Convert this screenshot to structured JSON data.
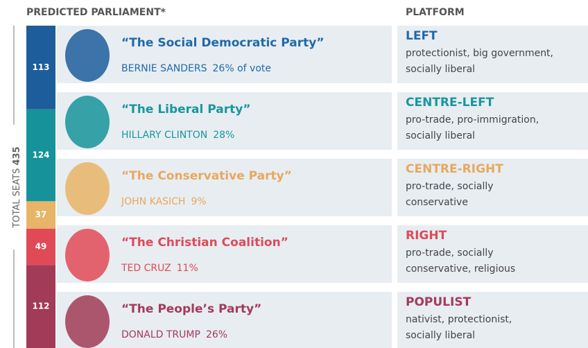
{
  "header": {
    "title": "PREDICTED PARLIAMENT*",
    "platform": "PLATFORM"
  },
  "total": {
    "label": "TOTAL SEATS",
    "value": 435
  },
  "parties": [
    {
      "name": "“The Social Democratic Party”",
      "leader": "BERNIE SANDERS",
      "vote": "26% of vote",
      "seats": 113,
      "color": "#1d5d9b",
      "text_color": "#1f6aaa",
      "platform": "LEFT",
      "description": [
        "protectionist, big government,",
        "socially liberal"
      ]
    },
    {
      "name": "“The Liberal Party”",
      "leader": "HILLARY CLINTON",
      "vote": "28%",
      "seats": 124,
      "color": "#16939a",
      "text_color": "#17979c",
      "platform": "CENTRE-LEFT",
      "description": [
        "pro-trade, pro-immigration,",
        "socially liberal"
      ]
    },
    {
      "name": "“The Conservative Party”",
      "leader": "JOHN KASICH",
      "vote": "9%",
      "seats": 37,
      "color": "#e8b467",
      "text_color": "#e7a85e",
      "platform": "CENTRE-RIGHT",
      "description": [
        "pro-trade, socially",
        "conservative"
      ]
    },
    {
      "name": "“The Christian Coalition”",
      "leader": "TED CRUZ",
      "vote": "11%",
      "seats": 49,
      "color": "#e04a57",
      "text_color": "#df4a58",
      "platform": "RIGHT",
      "description": [
        "pro-trade, socially",
        "conservative, religious"
      ]
    },
    {
      "name": "“The People’s Party”",
      "leader": "DONALD TRUMP",
      "vote": "26%",
      "seats": 112,
      "color": "#a13b57",
      "text_color": "#a33a5a",
      "platform": "POPULIST",
      "description": [
        "nativist, protectionist,",
        "socially liberal"
      ]
    }
  ]
}
